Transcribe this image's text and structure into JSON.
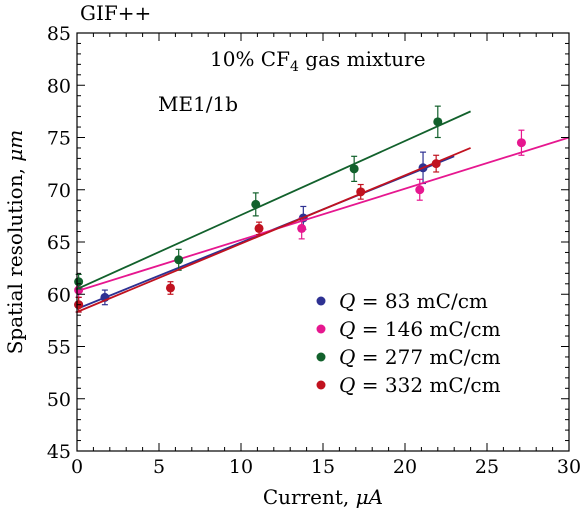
{
  "chart_data": {
    "type": "scatter",
    "corner_label": "GIF++",
    "annotations": {
      "gas_prefix": "10% CF",
      "gas_subscript": "4",
      "gas_suffix": " gas mixture",
      "chamber": "ME1/1b"
    },
    "xlabel_text": "Current, ",
    "xlabel_unit": "μA",
    "ylabel_text": "Spatial resolution, ",
    "ylabel_unit": "μm",
    "xlim": [
      0,
      30
    ],
    "ylim": [
      45,
      85
    ],
    "x_ticks": [
      0,
      5,
      10,
      15,
      20,
      25,
      30
    ],
    "y_ticks": [
      45,
      50,
      55,
      60,
      65,
      70,
      75,
      80,
      85
    ],
    "grid": false,
    "legend_position": "bottom-right",
    "series": [
      {
        "name_var": "Q",
        "name_rest": " = 83 mC/cm",
        "color": "#2e3192",
        "points": [
          {
            "x": 0.1,
            "y": 59.0,
            "err": 0.7
          },
          {
            "x": 1.7,
            "y": 59.7,
            "err": 0.7
          },
          {
            "x": 13.8,
            "y": 67.3,
            "err": 1.1
          },
          {
            "x": 21.1,
            "y": 72.1,
            "err": 1.5
          }
        ],
        "fit": {
          "x1": 0.0,
          "y1": 58.6,
          "x2": 23.0,
          "y2": 73.2
        }
      },
      {
        "name_var": "Q",
        "name_rest": " = 146 mC/cm",
        "color": "#e6178f",
        "points": [
          {
            "x": 0.1,
            "y": 60.4,
            "err": 0.7
          },
          {
            "x": 13.7,
            "y": 66.3,
            "err": 1.0
          },
          {
            "x": 20.9,
            "y": 70.0,
            "err": 1.0
          },
          {
            "x": 27.1,
            "y": 74.5,
            "err": 1.2
          }
        ],
        "fit": {
          "x1": 0.0,
          "y1": 60.3,
          "x2": 30.0,
          "y2": 75.0
        }
      },
      {
        "name_var": "Q",
        "name_rest": " = 277 mC/cm",
        "color": "#12612c",
        "points": [
          {
            "x": 0.1,
            "y": 61.2,
            "err": 0.7
          },
          {
            "x": 6.2,
            "y": 63.3,
            "err": 1.0
          },
          {
            "x": 10.9,
            "y": 68.6,
            "err": 1.1
          },
          {
            "x": 16.9,
            "y": 72.0,
            "err": 1.2
          },
          {
            "x": 22.0,
            "y": 76.5,
            "err": 1.5
          }
        ],
        "fit": {
          "x1": 0.0,
          "y1": 60.5,
          "x2": 24.0,
          "y2": 77.5
        }
      },
      {
        "name_var": "Q",
        "name_rest": " = 332 mC/cm",
        "color": "#c1121f",
        "points": [
          {
            "x": 0.1,
            "y": 59.0,
            "err": 0.7
          },
          {
            "x": 5.7,
            "y": 60.6,
            "err": 0.6
          },
          {
            "x": 11.1,
            "y": 66.3,
            "err": 0.6
          },
          {
            "x": 17.3,
            "y": 69.8,
            "err": 0.7
          },
          {
            "x": 21.9,
            "y": 72.5,
            "err": 0.8
          }
        ],
        "fit": {
          "x1": 0.0,
          "y1": 58.3,
          "x2": 24.0,
          "y2": 74.0
        }
      }
    ]
  }
}
